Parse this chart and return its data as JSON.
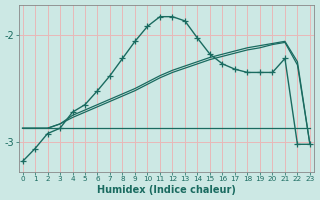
{
  "xlabel": "Humidex (Indice chaleur)",
  "background_color": "#cce8e4",
  "grid_color": "#e8b8b8",
  "line_color": "#1a6b60",
  "x_ticks": [
    0,
    1,
    2,
    3,
    4,
    5,
    6,
    7,
    8,
    9,
    10,
    11,
    12,
    13,
    14,
    15,
    16,
    17,
    18,
    19,
    20,
    21,
    22,
    23
  ],
  "xlim": [
    -0.3,
    23.3
  ],
  "ylim": [
    -3.28,
    -1.72
  ],
  "yticks": [
    -3,
    -2
  ],
  "series_main": [
    -3.18,
    -3.06,
    -2.92,
    -2.87,
    -2.72,
    -2.65,
    -2.52,
    -2.38,
    -2.22,
    -2.06,
    -1.92,
    -1.83,
    -1.83,
    -1.87,
    -2.03,
    -2.18,
    -2.27,
    -2.32,
    -2.35,
    -2.35,
    -2.35,
    -2.22,
    -3.02,
    -3.02
  ],
  "series_flat": [
    -2.87,
    -2.87,
    -2.87,
    -2.87,
    -2.87,
    -2.87,
    -2.87,
    -2.87,
    -2.87,
    -2.87,
    -2.87,
    -2.87,
    -2.87,
    -2.87,
    -2.87,
    -2.87,
    -2.87,
    -2.87,
    -2.87,
    -2.87,
    -2.87,
    -2.87,
    -2.87,
    -2.87
  ],
  "series_ramp1": [
    -2.87,
    -2.87,
    -2.87,
    -2.83,
    -2.75,
    -2.7,
    -2.65,
    -2.6,
    -2.55,
    -2.5,
    -2.44,
    -2.38,
    -2.33,
    -2.29,
    -2.25,
    -2.21,
    -2.18,
    -2.15,
    -2.12,
    -2.1,
    -2.08,
    -2.06,
    -2.25,
    -3.02
  ],
  "series_ramp2": [
    -2.87,
    -2.87,
    -2.87,
    -2.83,
    -2.77,
    -2.72,
    -2.67,
    -2.62,
    -2.57,
    -2.52,
    -2.46,
    -2.4,
    -2.35,
    -2.31,
    -2.27,
    -2.23,
    -2.2,
    -2.17,
    -2.14,
    -2.12,
    -2.09,
    -2.07,
    -2.28,
    -3.02
  ]
}
